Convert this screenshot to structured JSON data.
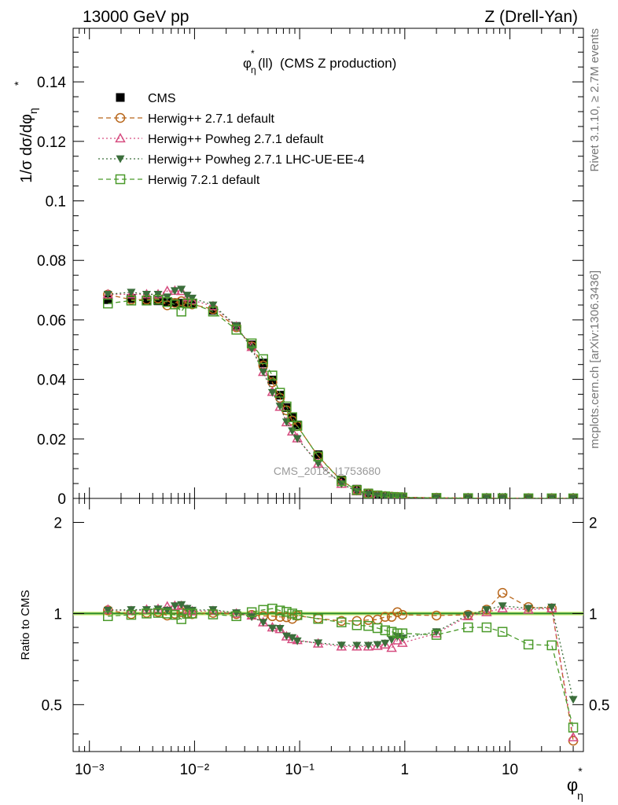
{
  "header": {
    "energy_label": "13000 GeV pp",
    "process_label": "Z (Drell-Yan)"
  },
  "side_text": {
    "rivet": "Rivet 3.1.10, ≥ 2.7M events",
    "mcplots": "mcplots.cern.ch [arXiv:1306.3436]"
  },
  "watermark": "CMS_2018_I1753680",
  "plot_title": "(CMS Z production)",
  "axis": {
    "top_ylabel": "1/σ dσ/dφ",
    "bottom_ylabel": "Ratio to CMS",
    "xlabel": "φ"
  },
  "colors": {
    "CMS": "#000000",
    "Herwig++ 2.7.1 default": "#b8661a",
    "Herwig++ Powheg 2.7.1 default": "#d64d80",
    "Herwig++ Powheg 2.7.1 LHC-UE-EE-4": "#3b6e3b",
    "Herwig 7.2.1 default": "#4a9a2a",
    "ref_band": "#ccee66"
  },
  "chart_data": [
    {
      "type": "scatter",
      "panel": "main",
      "title": "(CMS Z production)",
      "xlabel": "φ",
      "ylabel": "1/σ dσ/dφ",
      "xscale": "log",
      "xlim": [
        0.0007,
        50
      ],
      "ylim": [
        0,
        0.158
      ],
      "yticks": [
        0,
        0.02,
        0.04,
        0.06,
        0.08,
        0.1,
        0.12,
        0.14
      ],
      "ytick_labels": [
        "0",
        "0.02",
        "0.04",
        "0.06",
        "0.08",
        "0.1",
        "0.12",
        "0.14"
      ],
      "xticks": [
        0.001,
        0.01,
        0.1,
        1,
        10
      ],
      "xtick_labels": [
        "10⁻³",
        "10⁻²",
        "10⁻¹",
        "1",
        "10"
      ],
      "legend_position": "top-left",
      "x": [
        0.0015,
        0.0025,
        0.0035,
        0.0045,
        0.0055,
        0.0065,
        0.0075,
        0.0085,
        0.0095,
        0.015,
        0.025,
        0.035,
        0.045,
        0.055,
        0.065,
        0.075,
        0.085,
        0.095,
        0.15,
        0.25,
        0.35,
        0.45,
        0.55,
        0.65,
        0.75,
        0.85,
        0.95,
        2,
        4,
        6,
        8.5,
        15,
        25,
        40
      ],
      "series": [
        {
          "name": "CMS",
          "marker": "filled-square",
          "values": [
            0.0668,
            0.0672,
            0.0665,
            0.0664,
            0.066,
            0.0658,
            0.0656,
            0.0656,
            0.0655,
            0.0632,
            0.0578,
            0.0516,
            0.0455,
            0.0398,
            0.0347,
            0.0305,
            0.0273,
            0.0247,
            0.0147,
            0.0062,
            0.0031,
            0.0018,
            0.0011,
            0.0008,
            0.0006,
            0.0005,
            0.0004,
            0.0002,
            0.0001,
            8e-05,
            6e-05,
            5e-05,
            4e-05,
            3e-05
          ]
        },
        {
          "name": "Herwig++ 2.7.1 default",
          "marker": "open-circle",
          "dash": "dashed",
          "values": [
            0.0685,
            0.0668,
            0.0668,
            0.0672,
            0.0649,
            0.0657,
            0.0663,
            0.0657,
            0.0652,
            0.0636,
            0.0575,
            0.0511,
            0.0447,
            0.039,
            0.0338,
            0.0296,
            0.0262,
            0.0243,
            0.0142,
            0.0059,
            0.0029,
            0.0017,
            0.001,
            0.0008,
            0.0006,
            0.0005,
            0.0004,
            0.0002,
            0.0001,
            8e-05,
            6e-05,
            5e-05,
            4e-05,
            3e-05
          ]
        },
        {
          "name": "Herwig++ Powheg 2.7.1 default",
          "marker": "open-triangle",
          "dash": "dotted",
          "values": [
            0.0686,
            0.0686,
            0.0686,
            0.0686,
            0.0697,
            0.0698,
            0.0697,
            0.0676,
            0.0666,
            0.0646,
            0.0578,
            0.0509,
            0.0425,
            0.0358,
            0.0308,
            0.0256,
            0.0225,
            0.0202,
            0.0117,
            0.0049,
            0.0024,
            0.0014,
            0.0009,
            0.0006,
            0.0005,
            0.0004,
            0.0003,
            0.00017,
            0.0001,
            8e-05,
            6e-05,
            5e-05,
            4e-05,
            3e-05
          ]
        },
        {
          "name": "Herwig++ Powheg 2.7.1 LHC-UE-EE-4",
          "marker": "filled-inverted-triangle",
          "dash": "dotted",
          "values": [
            0.0686,
            0.0693,
            0.0686,
            0.0686,
            0.0677,
            0.0698,
            0.0703,
            0.0683,
            0.0673,
            0.065,
            0.058,
            0.0503,
            0.0425,
            0.0356,
            0.031,
            0.0257,
            0.0227,
            0.0201,
            0.0118,
            0.0049,
            0.0024,
            0.0014,
            0.0009,
            0.0006,
            0.0005,
            0.0004,
            0.0003,
            0.00017,
            0.0001,
            8e-05,
            6e-05,
            5e-05,
            4e-05,
            3e-05
          ]
        },
        {
          "name": "Herwig 7.2.1 default",
          "marker": "open-square",
          "dash": "dashed",
          "values": [
            0.0655,
            0.0665,
            0.0665,
            0.0668,
            0.066,
            0.0652,
            0.0628,
            0.0655,
            0.0655,
            0.0628,
            0.0567,
            0.0521,
            0.0468,
            0.0413,
            0.0355,
            0.0309,
            0.0273,
            0.0244,
            0.0141,
            0.0058,
            0.0028,
            0.0016,
            0.001,
            0.0007,
            0.0005,
            0.0004,
            0.0003,
            0.00017,
            9e-05,
            7e-05,
            5e-05,
            4e-05,
            3e-05,
            2e-05
          ]
        }
      ]
    },
    {
      "type": "scatter",
      "panel": "ratio",
      "xlabel": "φ",
      "ylabel": "Ratio to CMS",
      "xscale": "log",
      "yscale": "log",
      "xlim": [
        0.0007,
        50
      ],
      "ylim": [
        0.35,
        2.4
      ],
      "yticks": [
        0.5,
        1,
        2
      ],
      "ytick_labels": [
        "0.5",
        "1",
        "2"
      ],
      "xticks": [
        0.001,
        0.01,
        0.1,
        1,
        10
      ],
      "xtick_labels": [
        "10⁻³",
        "10⁻²",
        "10⁻¹",
        "1",
        "10"
      ],
      "reference_line": 1,
      "x": [
        0.0015,
        0.0025,
        0.0035,
        0.0045,
        0.0055,
        0.0065,
        0.0075,
        0.0085,
        0.0095,
        0.015,
        0.025,
        0.035,
        0.045,
        0.055,
        0.065,
        0.075,
        0.085,
        0.095,
        0.15,
        0.25,
        0.35,
        0.45,
        0.55,
        0.65,
        0.75,
        0.85,
        0.95,
        2,
        4,
        6,
        8.5,
        15,
        25,
        40
      ],
      "series": [
        {
          "name": "Herwig++ 2.7.1 default",
          "marker": "open-circle",
          "dash": "dashed",
          "values": [
            1.025,
            0.995,
            1.005,
            1.012,
            0.985,
            0.998,
            1.01,
            1.0,
            0.995,
            1.005,
            0.995,
            0.99,
            0.982,
            0.98,
            0.975,
            0.972,
            0.96,
            0.983,
            0.963,
            0.945,
            0.945,
            0.952,
            0.955,
            0.975,
            0.975,
            1.01,
            0.99,
            0.985,
            0.99,
            1.03,
            1.17,
            1.05,
            1.04,
            0.38
          ]
        },
        {
          "name": "Herwig++ Powheg 2.7.1 default",
          "marker": "open-triangle",
          "dash": "dotted",
          "values": [
            1.03,
            1.02,
            1.03,
            1.035,
            1.055,
            1.06,
            1.06,
            1.03,
            1.017,
            1.02,
            1.0,
            0.985,
            0.935,
            0.9,
            0.888,
            0.84,
            0.823,
            0.817,
            0.796,
            0.778,
            0.778,
            0.778,
            0.782,
            0.79,
            0.77,
            0.815,
            0.8,
            0.86,
            0.98,
            1.01,
            1.04,
            1.03,
            1.04,
            0.39
          ]
        },
        {
          "name": "Herwig++ Powheg 2.7.1 LHC-UE-EE-4",
          "marker": "filled-inverted-triangle",
          "dash": "dotted",
          "values": [
            1.025,
            1.03,
            1.03,
            1.035,
            1.025,
            1.06,
            1.07,
            1.04,
            1.025,
            1.03,
            1.005,
            0.975,
            0.935,
            0.895,
            0.893,
            0.843,
            0.832,
            0.812,
            0.8,
            0.786,
            0.785,
            0.785,
            0.79,
            0.798,
            0.82,
            0.84,
            0.83,
            0.87,
            0.99,
            1.03,
            1.06,
            1.04,
            1.05,
            0.52
          ]
        },
        {
          "name": "Herwig 7.2.1 default",
          "marker": "open-square",
          "dash": "dashed",
          "values": [
            0.98,
            0.99,
            1.0,
            1.005,
            1.0,
            0.99,
            0.958,
            0.998,
            1.0,
            0.993,
            0.98,
            1.01,
            1.028,
            1.038,
            1.023,
            1.013,
            1.0,
            0.988,
            0.96,
            0.935,
            0.915,
            0.91,
            0.895,
            0.88,
            0.87,
            0.86,
            0.86,
            0.85,
            0.9,
            0.9,
            0.87,
            0.79,
            0.785,
            0.42
          ]
        }
      ]
    }
  ]
}
